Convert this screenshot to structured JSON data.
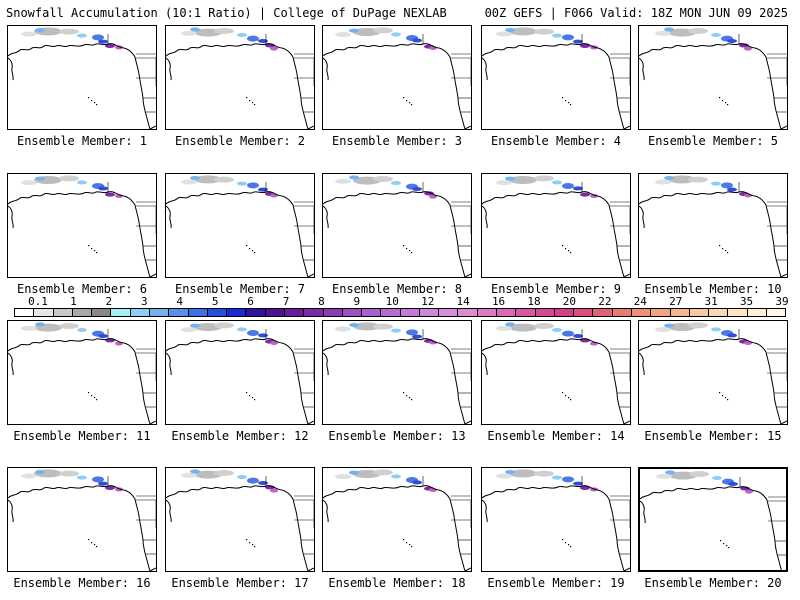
{
  "header": {
    "left": "Snowfall Accumulation (10:1 Ratio) | College of DuPage NEXLAB",
    "right": "00Z GEFS | F066 Valid: 18Z MON JUN 09 2025"
  },
  "legend": {
    "labels": [
      "0.1",
      "1",
      "2",
      "3",
      "4",
      "5",
      "6",
      "7",
      "8",
      "9",
      "10",
      "12",
      "14",
      "16",
      "18",
      "20",
      "22",
      "24",
      "27",
      "31",
      "35",
      "39"
    ],
    "colors": [
      "#ffffff",
      "#e6e6e6",
      "#c8c8c8",
      "#a8a8a8",
      "#888888",
      "#a6f0f5",
      "#8ecdf5",
      "#72b2f0",
      "#5a90ea",
      "#4070e6",
      "#2450e0",
      "#1a2ad2",
      "#3212a0",
      "#4a148c",
      "#6a1b9a",
      "#7b2aa8",
      "#8c3bb6",
      "#9c4ec2",
      "#aa60cc",
      "#b46ed2",
      "#c27ad6",
      "#ce88da",
      "#d88edc",
      "#df8ad0",
      "#e07ac4",
      "#dc68b6",
      "#d856a6",
      "#d44896",
      "#d63e88",
      "#dc4c80",
      "#e06278",
      "#e87a74",
      "#ee9078",
      "#f0a482",
      "#f4b692",
      "#f8c8a2",
      "#fad8b2",
      "#fce4c4",
      "#fef0d6",
      "#fff8e8"
    ]
  },
  "panels": [
    {
      "label": "Ensemble Member: 1"
    },
    {
      "label": "Ensemble Member: 2"
    },
    {
      "label": "Ensemble Member: 3"
    },
    {
      "label": "Ensemble Member: 4"
    },
    {
      "label": "Ensemble Member: 5"
    },
    {
      "label": "Ensemble Member: 6"
    },
    {
      "label": "Ensemble Member: 7"
    },
    {
      "label": "Ensemble Member: 8"
    },
    {
      "label": "Ensemble Member: 9"
    },
    {
      "label": "Ensemble Member: 10"
    },
    {
      "label": "Ensemble Member: 11"
    },
    {
      "label": "Ensemble Member: 12"
    },
    {
      "label": "Ensemble Member: 13"
    },
    {
      "label": "Ensemble Member: 14"
    },
    {
      "label": "Ensemble Member: 15"
    },
    {
      "label": "Ensemble Member: 16"
    },
    {
      "label": "Ensemble Member: 17"
    },
    {
      "label": "Ensemble Member: 18"
    },
    {
      "label": "Ensemble Member: 19"
    },
    {
      "label": "Ensemble Member: 20"
    }
  ]
}
